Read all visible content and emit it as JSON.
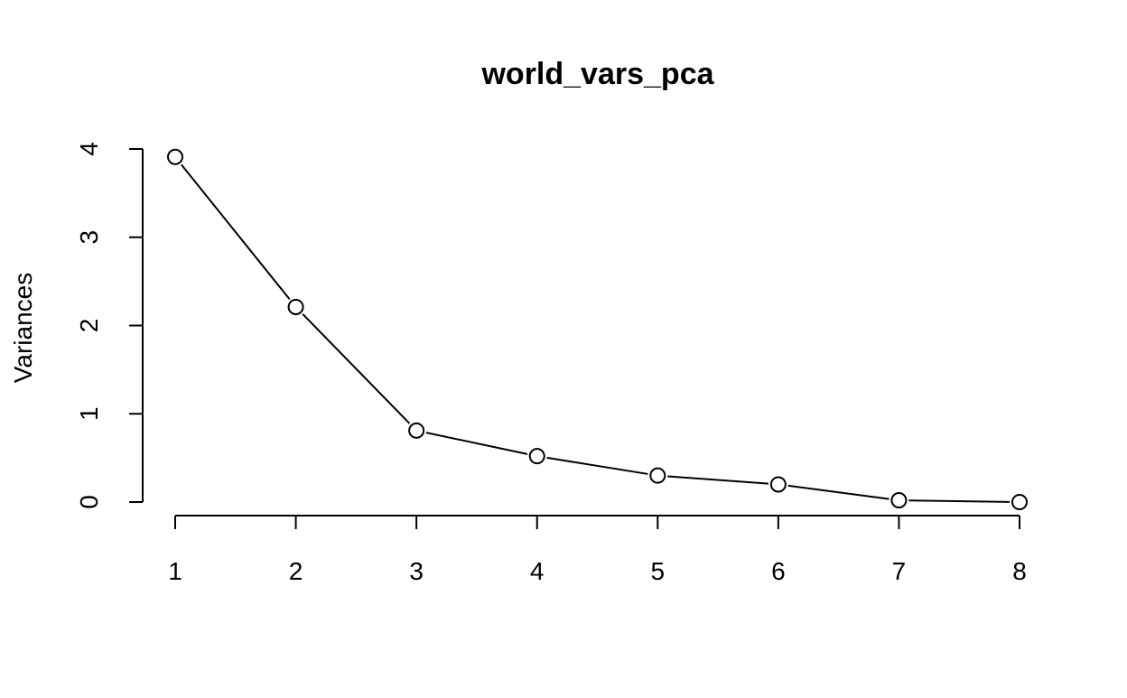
{
  "chart_data": {
    "type": "line",
    "title": "world_vars_pca",
    "xlabel": "",
    "ylabel": "Variances",
    "x": [
      1,
      2,
      3,
      4,
      5,
      6,
      7,
      8
    ],
    "values": [
      3.91,
      2.21,
      0.81,
      0.52,
      0.3,
      0.2,
      0.02,
      0.0
    ],
    "xticks": [
      "1",
      "2",
      "3",
      "4",
      "5",
      "6",
      "7",
      "8"
    ],
    "yticks": [
      "0",
      "1",
      "2",
      "3",
      "4"
    ],
    "xlim": [
      1,
      8
    ],
    "ylim": [
      0,
      4
    ],
    "grid": false,
    "legend": "none",
    "marker": "open-circle",
    "line_color": "#000000"
  }
}
